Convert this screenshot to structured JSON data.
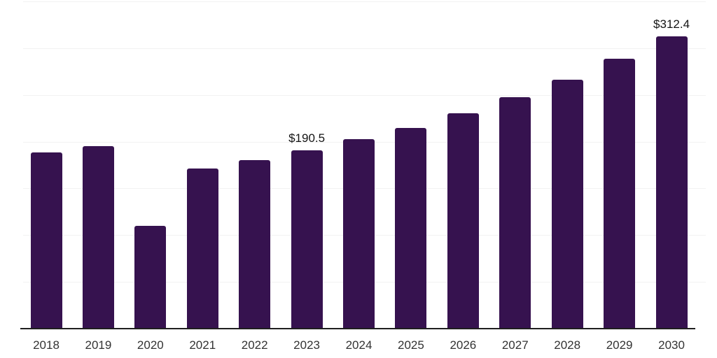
{
  "chart_data": {
    "type": "bar",
    "title": "",
    "xlabel": "",
    "ylabel": "",
    "categories": [
      "2018",
      "2019",
      "2020",
      "2021",
      "2022",
      "2023",
      "2024",
      "2025",
      "2026",
      "2027",
      "2028",
      "2029",
      "2030"
    ],
    "values": [
      188.4,
      195.1,
      110.0,
      171.3,
      180.2,
      190.5,
      202.7,
      214.6,
      230.3,
      247.5,
      266.2,
      288.6,
      312.4
    ],
    "annotations": [
      {
        "category": "2023",
        "label": "$190.5"
      },
      {
        "category": "2030",
        "label": "$312.4"
      }
    ],
    "ylim": [
      0,
      350
    ],
    "gridline_step": 50,
    "grid": true,
    "legend": false,
    "axis_tick_labels_y_visible": false
  },
  "colors": {
    "bar": "#36124f",
    "axis_line": "#1f1f1f",
    "gridline": "#f2f2f2",
    "tick_label": "#333333",
    "annotation_label": "#141414",
    "background": "#ffffff"
  }
}
